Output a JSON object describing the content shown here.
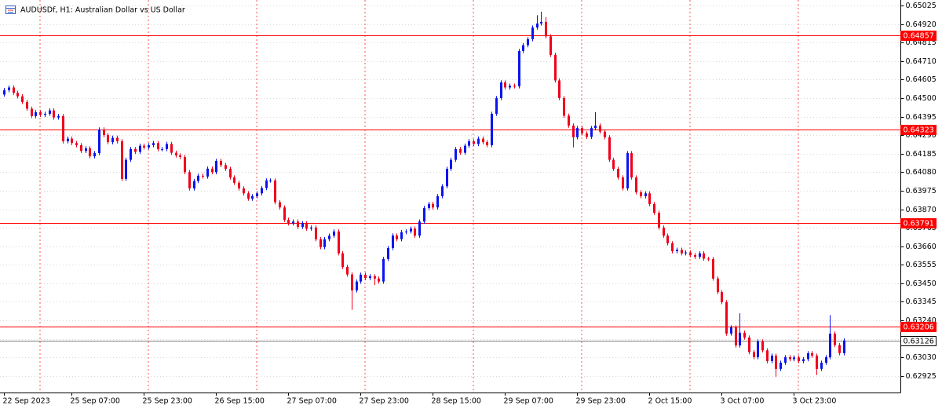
{
  "chart_data": {
    "type": "candlestick",
    "title": "AUDUSDf, H1:  Australian Dollar vs US Dollar",
    "up_color": "#0a14f0",
    "down_color": "#f0001c",
    "grid": true,
    "ylim": [
      0.62831,
      0.65056
    ],
    "yticks": [
      0.65025,
      {
        "value": 0.6492,
        "label": "0.64920"
      },
      0.64815,
      {
        "value": 0.6471,
        "label": "0.64710"
      },
      0.64605,
      {
        "value": 0.645,
        "label": "0.64500"
      },
      0.64395,
      {
        "value": 0.6429,
        "label": "0.64290"
      },
      0.64185,
      {
        "value": 0.6408,
        "label": "0.64080"
      },
      0.63975,
      {
        "value": 0.6387,
        "label": "0.63870"
      },
      0.63765,
      {
        "value": 0.6366,
        "label": "0.63660"
      },
      0.63555,
      {
        "value": 0.6345,
        "label": "0.63450"
      },
      0.63345,
      {
        "value": 0.6324,
        "label": "0.63240"
      },
      0.63135,
      {
        "value": 0.6303,
        "label": "0.63030"
      },
      0.62925
    ],
    "levels": [
      {
        "value": 0.64857,
        "color": "#ff0000"
      },
      {
        "value": 0.64323,
        "color": "#ff0000"
      },
      {
        "value": 0.63791,
        "color": "#ff0000"
      },
      {
        "value": 0.63206,
        "color": "#ff0000"
      }
    ],
    "last_price": {
      "value": 0.63126,
      "color": "#808080"
    },
    "categories": [
      "22 Sep 2023",
      null,
      null,
      null,
      null,
      null,
      null,
      null,
      null,
      null,
      null,
      null,
      null,
      null,
      null,
      "25 Sep 07:00",
      null,
      null,
      null,
      null,
      null,
      null,
      null,
      null,
      null,
      null,
      null,
      null,
      null,
      null,
      null,
      "25 Sep 23:00",
      null,
      null,
      null,
      null,
      null,
      null,
      null,
      null,
      null,
      null,
      null,
      null,
      null,
      null,
      null,
      "26 Sep 15:00",
      null,
      null,
      null,
      null,
      null,
      null,
      null,
      null,
      null,
      null,
      null,
      null,
      null,
      null,
      null,
      "27 Sep 07:00",
      null,
      null,
      null,
      null,
      null,
      null,
      null,
      null,
      null,
      null,
      null,
      null,
      null,
      null,
      null,
      "27 Sep 23:00",
      null,
      null,
      null,
      null,
      null,
      null,
      null,
      null,
      null,
      null,
      null,
      null,
      null,
      null,
      null,
      "28 Sep 15:00",
      null,
      null,
      null,
      null,
      null,
      null,
      null,
      null,
      null,
      null,
      null,
      null,
      null,
      null,
      null,
      "29 Sep 07:00",
      null,
      null,
      null,
      null,
      null,
      null,
      null,
      null,
      null,
      null,
      null,
      null,
      null,
      null,
      null,
      "29 Sep 23:00",
      null,
      null,
      null,
      null,
      null,
      null,
      null,
      null,
      null,
      null,
      null,
      null,
      null,
      null,
      null,
      "2 Oct 15:00",
      null,
      null,
      null,
      null,
      null,
      null,
      null,
      null,
      null,
      null,
      null,
      null,
      null,
      null,
      null,
      "3 Oct 07:00",
      null,
      null,
      null,
      null,
      null,
      null,
      null,
      null,
      null,
      null,
      null,
      null,
      null,
      null,
      null,
      "3 Oct 23:00",
      null,
      null,
      null,
      null,
      null,
      null,
      null,
      null,
      null,
      null,
      null
    ],
    "open": [
      0.6452,
      0.64545,
      0.6456,
      0.6453,
      0.6451,
      0.64478,
      0.6444,
      0.64398,
      0.6442,
      0.64405,
      0.64411,
      0.6443,
      0.6439,
      0.64398,
      0.64255,
      0.6427,
      0.64245,
      0.64233,
      0.642,
      0.64215,
      0.6417,
      0.64188,
      0.64322,
      0.6429,
      0.6425,
      0.64275,
      0.64255,
      0.64042,
      0.6415,
      0.64211,
      0.64195,
      0.6423,
      0.6422,
      0.64233,
      0.64245,
      0.6421,
      0.64211,
      0.6424,
      0.6419,
      0.64175,
      0.64166,
      0.6408,
      0.63988,
      0.6403,
      0.6406,
      0.64055,
      0.641,
      0.6408,
      0.64144,
      0.6412,
      0.64099,
      0.6405,
      0.6402,
      0.63988,
      0.6396,
      0.6393,
      0.63944,
      0.6396,
      0.6399,
      0.64033,
      0.64033,
      0.6391,
      0.6388,
      0.6381,
      0.6379,
      0.638,
      0.6377,
      0.6379,
      0.6376,
      0.63766,
      0.637,
      0.63655,
      0.637,
      0.6372,
      0.63744,
      0.6362,
      0.63543,
      0.635,
      0.6341,
      0.6346,
      0.63499,
      0.6348,
      0.6349,
      0.63477,
      0.6346,
      0.63588,
      0.6365,
      0.63721,
      0.637,
      0.6374,
      0.63744,
      0.6376,
      0.6372,
      0.638,
      0.63877,
      0.639,
      0.6388,
      0.63944,
      0.64,
      0.64099,
      0.6415,
      0.64211,
      0.6419,
      0.6423,
      0.64255,
      0.6424,
      0.6427,
      0.6425,
      0.64233,
      0.64411,
      0.645,
      0.64589,
      0.6456,
      0.6457,
      0.64567,
      0.64767,
      0.648,
      0.64834,
      0.649,
      0.64923,
      0.64932,
      0.6485,
      0.64745,
      0.646,
      0.645,
      0.644,
      0.64344,
      0.64278,
      0.6433,
      0.643,
      0.6428,
      0.6433,
      0.64344,
      0.6431,
      0.64278,
      0.6415,
      0.64099,
      0.6405,
      0.63988,
      0.64188,
      0.6405,
      0.63966,
      0.63944,
      0.6396,
      0.63899,
      0.6385,
      0.63766,
      0.6372,
      0.63677,
      0.63632,
      0.6364,
      0.6362,
      0.63625,
      0.6361,
      0.636,
      0.6362,
      0.6359,
      0.63588,
      0.63477,
      0.634,
      0.63343,
      0.63165,
      0.632,
      0.63098,
      0.6317,
      0.63143,
      0.6306,
      0.63031,
      0.6312,
      0.6307,
      0.63009,
      0.6304,
      0.62965,
      0.63,
      0.63031,
      0.6302,
      0.6303,
      0.63009,
      0.6302,
      0.63054,
      0.6304,
      0.62965,
      0.63,
      0.63031,
      0.63165,
      0.631,
      0.63054
    ],
    "high": [
      0.64557,
      0.64572,
      0.64572,
      0.64542,
      0.64522,
      0.6449,
      0.64452,
      0.64432,
      0.64432,
      0.64423,
      0.64442,
      0.64442,
      0.6441,
      0.6441,
      0.64282,
      0.64282,
      0.64257,
      0.64245,
      0.64227,
      0.64227,
      0.642,
      0.64334,
      0.64334,
      0.64302,
      0.64287,
      0.64287,
      0.64267,
      0.64162,
      0.64223,
      0.64223,
      0.64242,
      0.64242,
      0.64245,
      0.64257,
      0.64257,
      0.64223,
      0.64252,
      0.64252,
      0.64202,
      0.64187,
      0.64178,
      0.64092,
      0.64042,
      0.64072,
      0.64072,
      0.64112,
      0.64112,
      0.64156,
      0.64156,
      0.64132,
      0.64111,
      0.64062,
      0.64032,
      0.64,
      0.63972,
      0.63956,
      0.63972,
      0.64002,
      0.64045,
      0.64045,
      0.64045,
      0.63922,
      0.63892,
      0.63822,
      0.63812,
      0.63812,
      0.63802,
      0.63802,
      0.63778,
      0.63778,
      0.63712,
      0.63712,
      0.63732,
      0.63756,
      0.63756,
      0.63632,
      0.63555,
      0.63512,
      0.63472,
      0.63511,
      0.63511,
      0.63502,
      0.63502,
      0.63489,
      0.636,
      0.63662,
      0.63733,
      0.63733,
      0.63752,
      0.63756,
      0.63772,
      0.63772,
      0.63812,
      0.63889,
      0.63912,
      0.63912,
      0.63956,
      0.64012,
      0.64111,
      0.64162,
      0.64223,
      0.64223,
      0.64242,
      0.64267,
      0.64267,
      0.64282,
      0.64282,
      0.64262,
      0.64423,
      0.64512,
      0.64601,
      0.64601,
      0.64582,
      0.64582,
      0.64779,
      0.64812,
      0.64846,
      0.64912,
      0.6497,
      0.6499,
      0.6496,
      0.64862,
      0.64757,
      0.64612,
      0.64512,
      0.64412,
      0.64356,
      0.64342,
      0.64342,
      0.64312,
      0.64342,
      0.6442,
      0.64356,
      0.64322,
      0.6429,
      0.64162,
      0.64111,
      0.64062,
      0.642,
      0.642,
      0.64062,
      0.63978,
      0.63972,
      0.63972,
      0.63911,
      0.63862,
      0.63778,
      0.63732,
      0.63689,
      0.63652,
      0.63652,
      0.63637,
      0.63637,
      0.63622,
      0.63632,
      0.63632,
      0.636,
      0.636,
      0.63489,
      0.63412,
      0.63355,
      0.63212,
      0.63212,
      0.6328,
      0.63182,
      0.63155,
      0.63072,
      0.63132,
      0.63132,
      0.63082,
      0.63052,
      0.63052,
      0.63012,
      0.63043,
      0.63043,
      0.63042,
      0.63042,
      0.63032,
      0.63066,
      0.63066,
      0.63052,
      0.63012,
      0.63043,
      0.6327,
      0.63177,
      0.63112,
      0.63138
    ],
    "low": [
      0.64508,
      0.64533,
      0.64518,
      0.64498,
      0.64466,
      0.64428,
      0.64386,
      0.64386,
      0.64393,
      0.64393,
      0.64399,
      0.64378,
      0.64378,
      0.64243,
      0.64243,
      0.64233,
      0.64221,
      0.64188,
      0.64188,
      0.64158,
      0.64158,
      0.64176,
      0.64278,
      0.64238,
      0.64238,
      0.64243,
      0.6403,
      0.6403,
      0.64138,
      0.64183,
      0.64183,
      0.64208,
      0.64208,
      0.64221,
      0.64198,
      0.64198,
      0.64199,
      0.64178,
      0.64163,
      0.64154,
      0.64068,
      0.63976,
      0.63976,
      0.64018,
      0.64043,
      0.64043,
      0.64068,
      0.64068,
      0.64108,
      0.64087,
      0.64038,
      0.64008,
      0.63976,
      0.63948,
      0.63918,
      0.63918,
      0.63932,
      0.63948,
      0.63978,
      0.64021,
      0.63898,
      0.63868,
      0.63798,
      0.63778,
      0.63778,
      0.63758,
      0.63758,
      0.63748,
      0.63748,
      0.63688,
      0.63643,
      0.63643,
      0.63688,
      0.63708,
      0.63608,
      0.63531,
      0.63488,
      0.633,
      0.63398,
      0.63448,
      0.63468,
      0.63468,
      0.6344,
      0.63448,
      0.63448,
      0.63576,
      0.63638,
      0.63688,
      0.63688,
      0.63728,
      0.63732,
      0.63708,
      0.63708,
      0.63788,
      0.63865,
      0.63868,
      0.63868,
      0.63932,
      0.63988,
      0.64087,
      0.64138,
      0.64178,
      0.64178,
      0.64218,
      0.64228,
      0.64228,
      0.64238,
      0.64221,
      0.64221,
      0.64399,
      0.64488,
      0.64548,
      0.64548,
      0.64555,
      0.64555,
      0.64755,
      0.64788,
      0.64822,
      0.64888,
      0.64911,
      0.64838,
      0.64733,
      0.64588,
      0.64488,
      0.64388,
      0.64332,
      0.6422,
      0.64266,
      0.64288,
      0.64268,
      0.64268,
      0.64318,
      0.64298,
      0.64266,
      0.64138,
      0.64087,
      0.64038,
      0.63976,
      0.63976,
      0.64038,
      0.63954,
      0.63932,
      0.63932,
      0.63887,
      0.63838,
      0.63754,
      0.63708,
      0.63665,
      0.6362,
      0.6362,
      0.63608,
      0.63608,
      0.63598,
      0.63588,
      0.63588,
      0.63578,
      0.63576,
      0.63465,
      0.63388,
      0.63331,
      0.63153,
      0.63153,
      0.63086,
      0.63086,
      0.63131,
      0.63048,
      0.63019,
      0.63019,
      0.63058,
      0.62997,
      0.62997,
      0.6292,
      0.62953,
      0.62988,
      0.63008,
      0.63008,
      0.62997,
      0.62997,
      0.63008,
      0.63028,
      0.6293,
      0.62953,
      0.62988,
      0.63019,
      0.63088,
      0.63042,
      0.63042
    ],
    "close": [
      0.64545,
      0.6456,
      0.6453,
      0.6451,
      0.64478,
      0.6444,
      0.64398,
      0.6442,
      0.64405,
      0.64411,
      0.6443,
      0.6439,
      0.64398,
      0.64255,
      0.6427,
      0.64245,
      0.64233,
      0.642,
      0.64215,
      0.6417,
      0.64188,
      0.64322,
      0.6429,
      0.6425,
      0.64275,
      0.64255,
      0.64042,
      0.6415,
      0.64211,
      0.64195,
      0.6423,
      0.6422,
      0.64233,
      0.64245,
      0.6421,
      0.64211,
      0.6424,
      0.6419,
      0.64175,
      0.64166,
      0.6408,
      0.63988,
      0.6403,
      0.6406,
      0.64055,
      0.641,
      0.6408,
      0.64144,
      0.6412,
      0.64099,
      0.6405,
      0.6402,
      0.63988,
      0.6396,
      0.6393,
      0.63944,
      0.6396,
      0.6399,
      0.64033,
      0.64033,
      0.6391,
      0.6388,
      0.6381,
      0.6379,
      0.638,
      0.6377,
      0.6379,
      0.6376,
      0.63766,
      0.637,
      0.63655,
      0.637,
      0.6372,
      0.63744,
      0.6362,
      0.63543,
      0.635,
      0.6341,
      0.6346,
      0.63499,
      0.6348,
      0.6349,
      0.63477,
      0.6346,
      0.63588,
      0.6365,
      0.63721,
      0.637,
      0.6374,
      0.63744,
      0.6376,
      0.6372,
      0.638,
      0.63877,
      0.639,
      0.6388,
      0.63944,
      0.64,
      0.64099,
      0.6415,
      0.64211,
      0.6419,
      0.6423,
      0.64255,
      0.6424,
      0.6427,
      0.6425,
      0.64233,
      0.64411,
      0.645,
      0.64589,
      0.6456,
      0.6457,
      0.64567,
      0.64767,
      0.648,
      0.64834,
      0.649,
      0.64923,
      0.64932,
      0.6485,
      0.64745,
      0.646,
      0.645,
      0.644,
      0.64344,
      0.64278,
      0.6433,
      0.643,
      0.6428,
      0.6433,
      0.64344,
      0.6431,
      0.64278,
      0.6415,
      0.64099,
      0.6405,
      0.63988,
      0.64188,
      0.6405,
      0.63966,
      0.63944,
      0.6396,
      0.63899,
      0.6385,
      0.63766,
      0.6372,
      0.63677,
      0.63632,
      0.6364,
      0.6362,
      0.63625,
      0.6361,
      0.636,
      0.6362,
      0.6359,
      0.63588,
      0.63477,
      0.634,
      0.63343,
      0.63165,
      0.632,
      0.63098,
      0.6317,
      0.63143,
      0.6306,
      0.63031,
      0.6312,
      0.6307,
      0.63009,
      0.6304,
      0.62965,
      0.63,
      0.63031,
      0.6302,
      0.6303,
      0.63009,
      0.6302,
      0.63054,
      0.6304,
      0.62965,
      0.63,
      0.63031,
      0.63165,
      0.631,
      0.63054,
      0.63126
    ]
  }
}
